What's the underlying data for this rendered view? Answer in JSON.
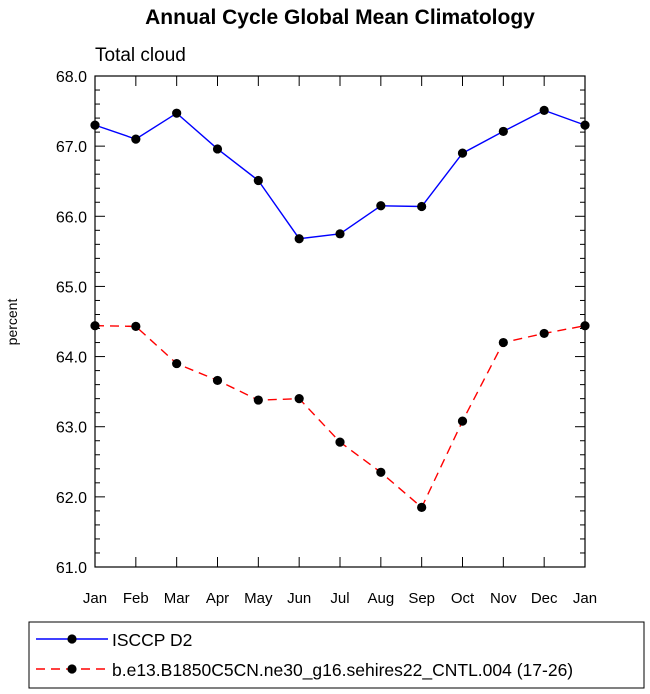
{
  "chart_data": {
    "type": "line",
    "title": "Annual Cycle Global Mean Climatology",
    "subtitle": "Total cloud",
    "xlabel": "",
    "ylabel": "percent",
    "categories": [
      "Jan",
      "Feb",
      "Mar",
      "Apr",
      "May",
      "Jun",
      "Jul",
      "Aug",
      "Sep",
      "Oct",
      "Nov",
      "Dec",
      "Jan"
    ],
    "ylim": [
      61.0,
      68.0
    ],
    "yticks": [
      61.0,
      62.0,
      63.0,
      64.0,
      65.0,
      66.0,
      67.0,
      68.0
    ],
    "ytick_labels": [
      "61.0",
      "62.0",
      "63.0",
      "64.0",
      "65.0",
      "66.0",
      "67.0",
      "68.0"
    ],
    "series": [
      {
        "name": "ISCCP D2",
        "color": "#0000ff",
        "dash": "solid",
        "values": [
          67.3,
          67.1,
          67.47,
          66.96,
          66.51,
          65.68,
          65.75,
          66.15,
          66.14,
          66.9,
          67.21,
          67.51,
          67.3
        ]
      },
      {
        "name": "b.e13.B1850C5CN.ne30_g16.sehires22_CNTL.004 (17-26)",
        "color": "#ff0000",
        "dash": "dashed",
        "values": [
          64.44,
          64.43,
          63.9,
          63.66,
          63.38,
          63.4,
          62.78,
          62.35,
          61.85,
          63.08,
          64.2,
          64.33,
          64.44
        ]
      }
    ],
    "legend_position": "bottom-left"
  }
}
